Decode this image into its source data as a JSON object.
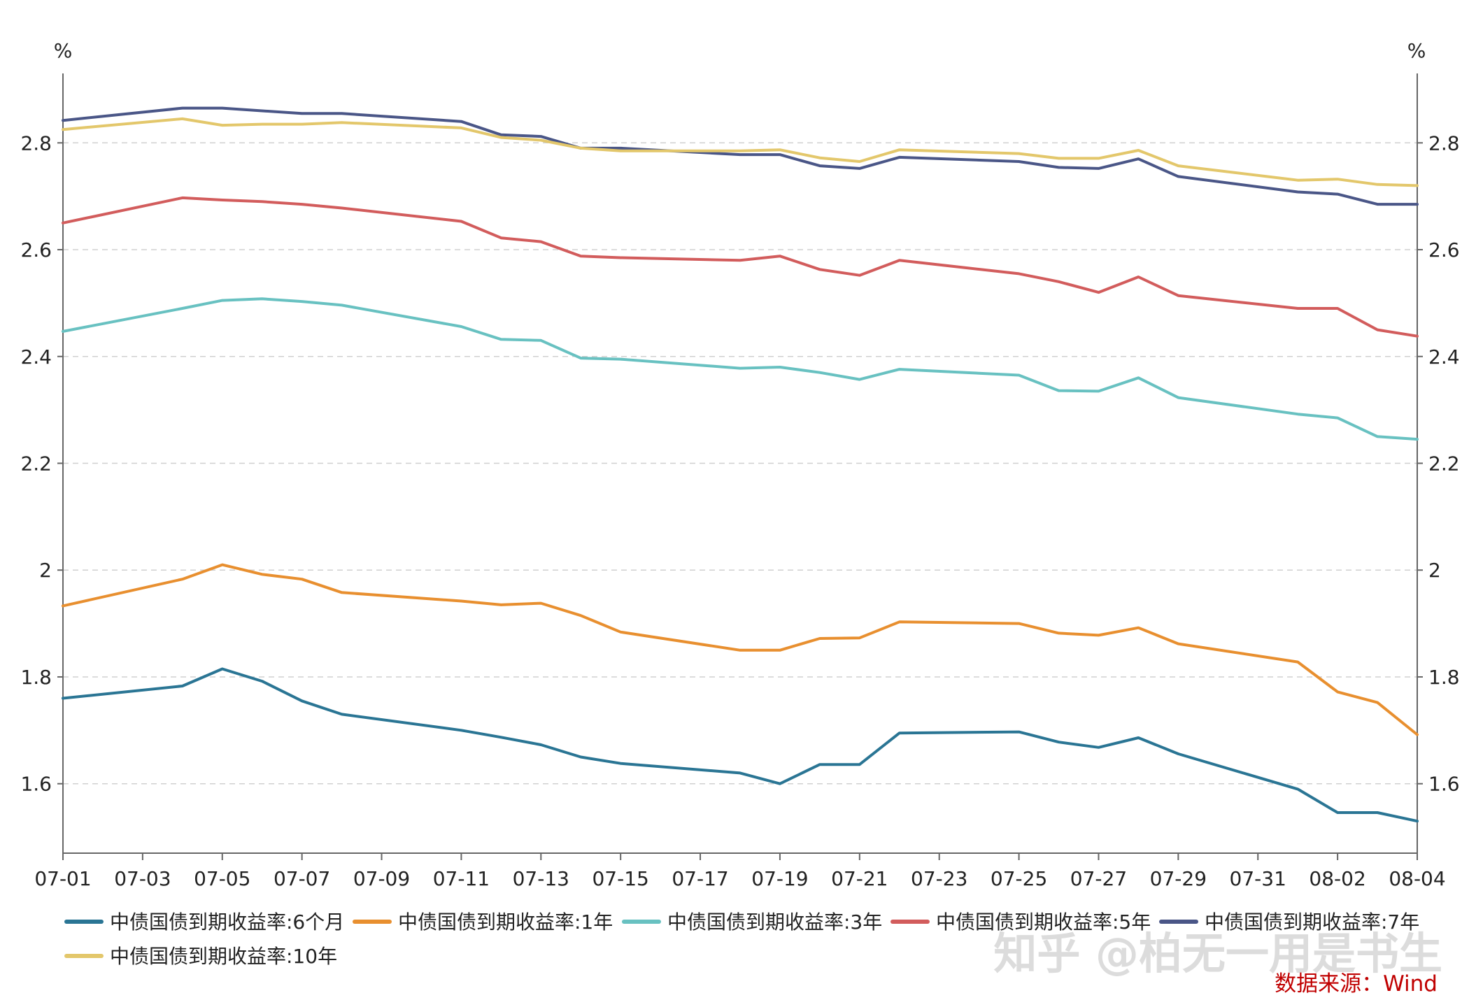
{
  "chart_data": {
    "type": "line",
    "title": "",
    "xlabel": "",
    "ylabel": "%",
    "ylabel_right": "%",
    "ylim": [
      1.47,
      2.93
    ],
    "yticks": [
      1.6,
      1.8,
      2,
      2.2,
      2.4,
      2.6,
      2.8
    ],
    "ytick_labels": [
      "1.6",
      "1.8",
      "2",
      "2.2",
      "2.4",
      "2.6",
      "2.8"
    ],
    "grid": "horizontal dashed",
    "legend_position": "bottom",
    "xtick_labels": [
      "07-01",
      "07-03",
      "07-05",
      "07-07",
      "07-09",
      "07-11",
      "07-13",
      "07-15",
      "07-17",
      "07-19",
      "07-21",
      "07-23",
      "07-25",
      "07-27",
      "07-29",
      "07-31",
      "08-02",
      "08-04"
    ],
    "x": [
      "07-01",
      "07-04",
      "07-05",
      "07-06",
      "07-07",
      "07-08",
      "07-11",
      "07-12",
      "07-13",
      "07-14",
      "07-15",
      "07-18",
      "07-19",
      "07-20",
      "07-21",
      "07-22",
      "07-25",
      "07-26",
      "07-27",
      "07-28",
      "07-29",
      "08-01",
      "08-02",
      "08-03",
      "08-04"
    ],
    "series": [
      {
        "name": "中债国债到期收益率:6个月",
        "color": "#2a7594",
        "values": [
          1.76,
          1.783,
          1.815,
          1.792,
          1.755,
          1.73,
          1.7,
          1.687,
          1.673,
          1.65,
          1.638,
          1.62,
          1.6,
          1.636,
          1.636,
          1.695,
          1.697,
          1.678,
          1.668,
          1.686,
          1.656,
          1.59,
          1.546,
          1.546,
          1.53
        ]
      },
      {
        "name": "中债国债到期收益率:1年",
        "color": "#e88f2f",
        "values": [
          1.933,
          1.983,
          2.01,
          1.992,
          1.983,
          1.958,
          1.942,
          1.935,
          1.938,
          1.915,
          1.884,
          1.85,
          1.85,
          1.872,
          1.873,
          1.903,
          1.9,
          1.882,
          1.878,
          1.892,
          1.862,
          1.828,
          1.772,
          1.752,
          1.692
        ]
      },
      {
        "name": "中债国债到期收益率:3年",
        "color": "#68c1c1",
        "values": [
          2.447,
          2.49,
          2.505,
          2.508,
          2.503,
          2.496,
          2.456,
          2.432,
          2.43,
          2.397,
          2.395,
          2.378,
          2.38,
          2.37,
          2.357,
          2.376,
          2.365,
          2.336,
          2.335,
          2.36,
          2.323,
          2.292,
          2.285,
          2.25,
          2.245
        ]
      },
      {
        "name": "中债国债到期收益率:5年",
        "color": "#d25c5c",
        "values": [
          2.65,
          2.697,
          2.693,
          2.69,
          2.685,
          2.678,
          2.653,
          2.622,
          2.615,
          2.588,
          2.585,
          2.58,
          2.588,
          2.563,
          2.552,
          2.58,
          2.555,
          2.54,
          2.52,
          2.549,
          2.514,
          2.49,
          2.49,
          2.45,
          2.438
        ]
      },
      {
        "name": "中债国债到期收益率:7年",
        "color": "#4a5687",
        "values": [
          2.842,
          2.865,
          2.865,
          2.86,
          2.855,
          2.855,
          2.84,
          2.815,
          2.812,
          2.79,
          2.79,
          2.778,
          2.778,
          2.757,
          2.752,
          2.773,
          2.765,
          2.754,
          2.752,
          2.77,
          2.737,
          2.708,
          2.704,
          2.685,
          2.685
        ]
      },
      {
        "name": "中债国债到期收益率:10年",
        "color": "#e3c76b",
        "values": [
          2.825,
          2.845,
          2.833,
          2.835,
          2.835,
          2.838,
          2.828,
          2.81,
          2.805,
          2.79,
          2.785,
          2.785,
          2.787,
          2.772,
          2.765,
          2.787,
          2.78,
          2.771,
          2.771,
          2.786,
          2.757,
          2.73,
          2.732,
          2.722,
          2.72
        ]
      }
    ]
  },
  "watermark": "知乎 @柏无一用是书生",
  "source_label": "数据来源：Wind"
}
